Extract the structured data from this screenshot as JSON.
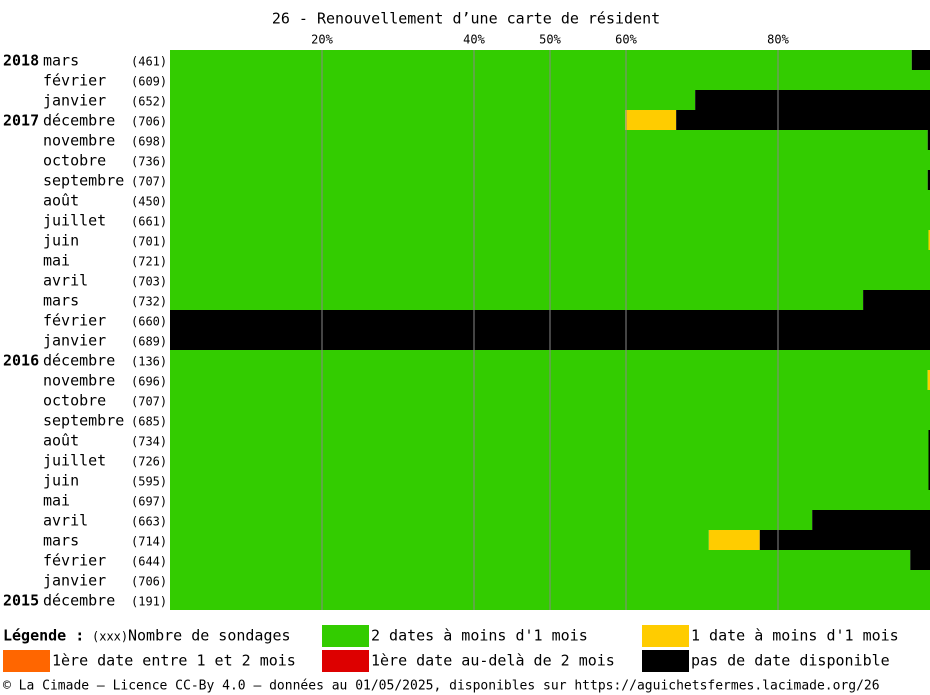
{
  "chart_data": {
    "type": "stacked-barh",
    "title": "26 - Renouvellement d’une carte de résident",
    "years": [
      "2018",
      null,
      null,
      "2017",
      null,
      null,
      null,
      null,
      null,
      null,
      null,
      null,
      null,
      null,
      null,
      "2016",
      null,
      null,
      null,
      null,
      null,
      null,
      null,
      null,
      null,
      null,
      null,
      "2015"
    ],
    "categories": [
      "mars",
      "février",
      "janvier",
      "décembre",
      "novembre",
      "octobre",
      "septembre",
      "août",
      "juillet",
      "juin",
      "mai",
      "avril",
      "mars",
      "février",
      "janvier",
      "décembre",
      "novembre",
      "octobre",
      "septembre",
      "août",
      "juillet",
      "juin",
      "mai",
      "avril",
      "mars",
      "février",
      "janvier",
      "décembre"
    ],
    "counts": [
      "(461)",
      "(609)",
      "(652)",
      "(706)",
      "(698)",
      "(736)",
      "(707)",
      "(450)",
      "(661)",
      "(701)",
      "(721)",
      "(703)",
      "(732)",
      "(660)",
      "(689)",
      "(136)",
      "(696)",
      "(707)",
      "(685)",
      "(734)",
      "(726)",
      "(595)",
      "(697)",
      "(663)",
      "(714)",
      "(644)",
      "(706)",
      "(191)"
    ],
    "series": [
      {
        "name": "2 dates à moins d'1 mois",
        "color": "#33cc00",
        "values": [
          97.6,
          100,
          69.1,
          59.9,
          99.7,
          100,
          99.7,
          100,
          100,
          99.8,
          100,
          100,
          91.2,
          0,
          0,
          100,
          99.7,
          100,
          100,
          99.8,
          99.8,
          99.8,
          100,
          84.5,
          70.9,
          97.4,
          100,
          100
        ]
      },
      {
        "name": "1 date à moins d'1 mois",
        "color": "#ffcc00",
        "values": [
          0,
          0,
          0,
          6.7,
          0,
          0,
          0,
          0,
          0,
          0.2,
          0,
          0,
          0,
          0,
          0,
          0,
          0.3,
          0,
          0,
          0,
          0,
          0,
          0,
          0,
          6.7,
          0,
          0,
          0
        ]
      },
      {
        "name": "1ère date entre 1 et 2 mois",
        "color": "#ff6600",
        "values": [
          0,
          0,
          0,
          0,
          0,
          0,
          0,
          0,
          0,
          0,
          0,
          0,
          0,
          0,
          0,
          0,
          0,
          0,
          0,
          0,
          0,
          0,
          0,
          0,
          0,
          0,
          0,
          0
        ]
      },
      {
        "name": "1ère date au-delà de 2 mois",
        "color": "#dd0000",
        "values": [
          0,
          0,
          0,
          0,
          0,
          0,
          0,
          0,
          0,
          0,
          0,
          0,
          0,
          0,
          0,
          0,
          0,
          0,
          0,
          0,
          0,
          0,
          0,
          0,
          0,
          0,
          0,
          0
        ]
      },
      {
        "name": "pas de date disponible",
        "color": "#000000",
        "values": [
          2.4,
          0,
          30.9,
          33.4,
          0.3,
          0,
          0.3,
          0,
          0,
          0,
          0,
          0,
          8.8,
          100,
          100,
          0,
          0,
          0,
          0,
          0.2,
          0.2,
          0.2,
          0,
          15.5,
          22.4,
          2.6,
          0,
          0
        ]
      }
    ],
    "xlim": [
      0,
      100
    ],
    "xticks": [
      {
        "value": 20,
        "label": "20%"
      },
      {
        "value": 40,
        "label": "40%"
      },
      {
        "value": 50,
        "label": "50%"
      },
      {
        "value": 60,
        "label": "60%"
      },
      {
        "value": 80,
        "label": "80%"
      }
    ],
    "grid": true,
    "legend_title": "Légende :",
    "count_key": "(xxx)",
    "count_legend": "Nombre de sondages",
    "footer": "© La Cimade — Licence CC-By 4.0 — données au 01/05/2025, disponibles sur https://aguichetsfermes.lacimade.org/26"
  }
}
